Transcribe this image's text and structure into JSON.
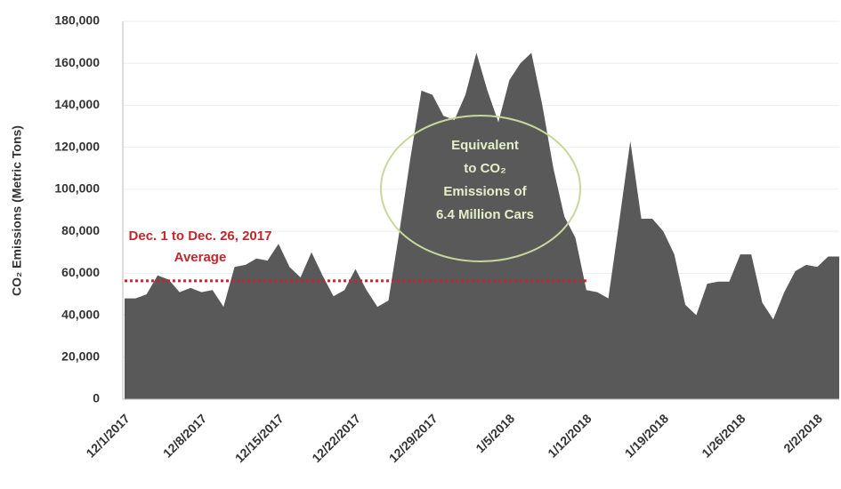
{
  "chart_data": {
    "type": "area",
    "y_label": "CO₂ Emissions (Metric Tons)",
    "categories": [
      "12/1/2017",
      null,
      null,
      null,
      null,
      null,
      null,
      "12/8/2017",
      null,
      null,
      null,
      null,
      null,
      null,
      "12/15/2017",
      null,
      null,
      null,
      null,
      null,
      null,
      "12/22/2017",
      null,
      null,
      null,
      null,
      null,
      null,
      "12/29/2017",
      null,
      null,
      null,
      null,
      null,
      null,
      "1/5/2018",
      null,
      null,
      null,
      null,
      null,
      null,
      "1/12/2018",
      null,
      null,
      null,
      null,
      null,
      null,
      "1/19/2018",
      null,
      null,
      null,
      null,
      null,
      null,
      "1/26/2018",
      null,
      null,
      null,
      null,
      null,
      null,
      "2/2/2018",
      null,
      null
    ],
    "values": [
      48000,
      48000,
      50000,
      59000,
      57000,
      51000,
      53000,
      51000,
      52000,
      44000,
      63000,
      64000,
      67000,
      66000,
      74000,
      63000,
      58000,
      70000,
      59000,
      49000,
      52000,
      62000,
      52000,
      44000,
      47000,
      80000,
      115000,
      147000,
      145000,
      135000,
      133000,
      145000,
      165000,
      147000,
      132000,
      152000,
      160000,
      165000,
      140000,
      110000,
      87000,
      77000,
      52000,
      51000,
      48000,
      85000,
      123000,
      86000,
      86000,
      80000,
      69000,
      45000,
      40000,
      55000,
      56000,
      56000,
      69000,
      69000,
      46000,
      38000,
      51000,
      61000,
      64000,
      63000,
      68000,
      68000
    ],
    "color": "#595959",
    "ylim": [
      0,
      180000
    ],
    "yticks": [
      0,
      {
        "value": 20000,
        "label": "20,000"
      },
      {
        "value": 40000,
        "label": "40,000"
      },
      {
        "value": 60000,
        "label": "60,000"
      },
      {
        "value": 80000,
        "label": "80,000"
      },
      {
        "value": 100000,
        "label": "100,000"
      },
      {
        "value": 120000,
        "label": "120,000"
      },
      {
        "value": 140000,
        "label": "140,000"
      },
      {
        "value": 160000,
        "label": "160,000"
      },
      {
        "value": 180000,
        "label": "180,000"
      }
    ],
    "average": {
      "value": 56400,
      "color": "#c0282d",
      "label_lines": [
        "Dec. 1 to Dec. 26, 2017",
        "Average"
      ]
    },
    "annotation": {
      "lines": [
        "Equivalent",
        "to CO₂",
        "Emissions of",
        "6.4 Million Cars"
      ],
      "color": "#c5d89a"
    }
  }
}
